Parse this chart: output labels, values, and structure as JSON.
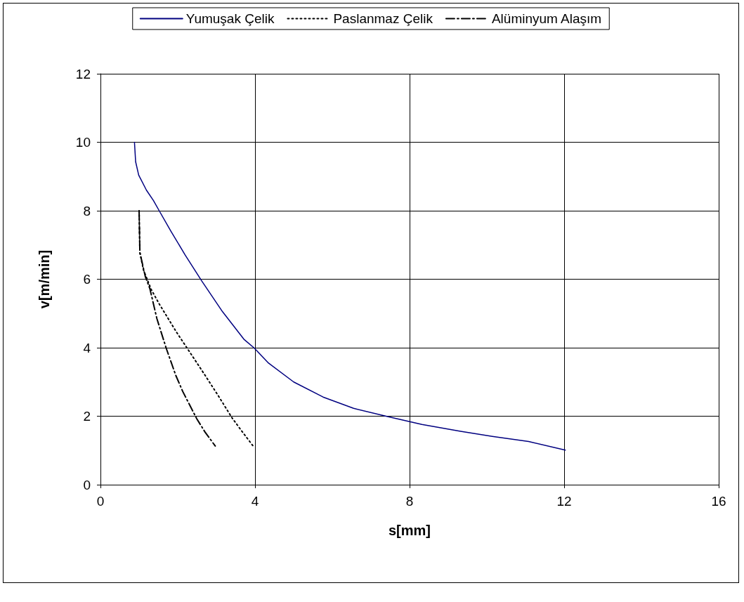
{
  "chart_data": {
    "type": "line",
    "xlabel": "s[mm]",
    "ylabel": "v[m/min]",
    "xlim": [
      0,
      16
    ],
    "xticks": [
      0,
      4,
      8,
      12,
      16
    ],
    "ylim": [
      0,
      12
    ],
    "yticks": [
      0,
      2,
      4,
      6,
      8,
      10,
      12
    ],
    "grid": true,
    "legend": "top",
    "marker": "none",
    "series": [
      {
        "name": "Yumuşak Çelik",
        "color": "#000080",
        "line_style": "solid",
        "x": [
          0.88,
          0.91,
          0.99,
          1.19,
          1.37,
          1.52,
          1.82,
          2.19,
          2.62,
          3.16,
          3.71,
          3.98,
          4.35,
          5.0,
          5.76,
          6.55,
          7.43,
          8.32,
          9.32,
          10.14,
          11.08,
          12.03
        ],
        "values": [
          10.0,
          9.43,
          9.04,
          8.6,
          8.3,
          8.0,
          7.41,
          6.71,
          5.95,
          5.05,
          4.25,
          3.99,
          3.55,
          3.0,
          2.56,
          2.23,
          1.99,
          1.76,
          1.56,
          1.41,
          1.26,
          1.01
        ]
      },
      {
        "name": "Paslanmaz Çelik",
        "color": "#000000",
        "line_style": "dotted",
        "x": [
          1.0,
          1.02,
          1.11,
          1.31,
          1.52,
          1.97,
          2.34,
          2.71,
          3.07,
          3.4,
          3.68,
          3.95
        ],
        "values": [
          8.0,
          6.78,
          6.28,
          5.71,
          5.28,
          4.45,
          3.82,
          3.19,
          2.56,
          1.96,
          1.53,
          1.13
        ]
      },
      {
        "name": "Alüminyum Alaşım",
        "color": "#000000",
        "line_style": "dashdot",
        "x": [
          1.0,
          1.02,
          1.16,
          1.28,
          1.46,
          1.7,
          1.95,
          2.13,
          2.49,
          2.71,
          2.97
        ],
        "values": [
          8.0,
          6.78,
          6.08,
          5.72,
          4.85,
          3.99,
          3.19,
          2.72,
          1.93,
          1.53,
          1.13
        ]
      }
    ]
  }
}
